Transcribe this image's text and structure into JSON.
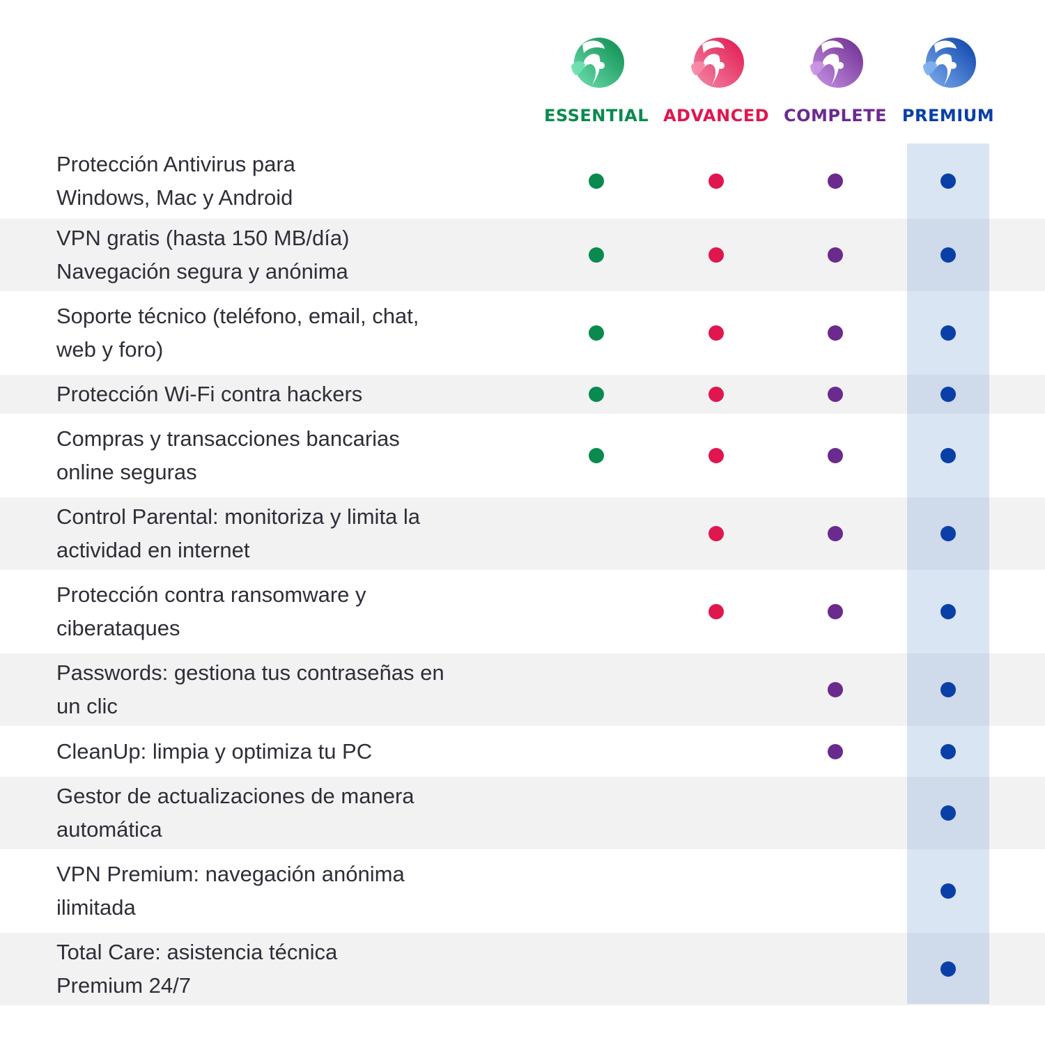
{
  "plans": [
    {
      "id": "essential",
      "name": "ESSENTIAL",
      "color": "#0a8a4e",
      "light": "#6fe0b0",
      "icon": "essential-logo-icon"
    },
    {
      "id": "advanced",
      "name": "ADVANCED",
      "color": "#e0164f",
      "light": "#f58aa8",
      "icon": "advanced-logo-icon"
    },
    {
      "id": "complete",
      "name": "COMPLETE",
      "color": "#6b2a8e",
      "light": "#c994e6",
      "icon": "complete-logo-icon"
    },
    {
      "id": "premium",
      "name": "PREMIUM",
      "color": "#0a3fa8",
      "light": "#7fb0ee",
      "icon": "premium-logo-icon"
    }
  ],
  "features": [
    {
      "label": "Protección Antivirus para\nWindows, Mac y Android",
      "included": [
        true,
        true,
        true,
        true
      ]
    },
    {
      "label": "VPN gratis (hasta 150 MB/día)\nNavegación segura y anónima",
      "included": [
        true,
        true,
        true,
        true
      ]
    },
    {
      "label": "Soporte técnico (teléfono, email, chat,\nweb y foro)",
      "included": [
        true,
        true,
        true,
        true
      ]
    },
    {
      "label": "Protección Wi-Fi contra hackers",
      "included": [
        true,
        true,
        true,
        true
      ]
    },
    {
      "label": "Compras y transacciones bancarias\nonline seguras",
      "included": [
        true,
        true,
        true,
        true
      ]
    },
    {
      "label": "Control Parental: monitoriza y limita la\nactividad en internet",
      "included": [
        false,
        true,
        true,
        true
      ]
    },
    {
      "label": "Protección contra ransomware y\nciberataques",
      "included": [
        false,
        true,
        true,
        true
      ]
    },
    {
      "label": "Passwords: gestiona tus contraseñas en\nun clic",
      "included": [
        false,
        false,
        true,
        true
      ]
    },
    {
      "label": "CleanUp: limpia y optimiza tu PC",
      "included": [
        false,
        false,
        true,
        true
      ]
    },
    {
      "label": "Gestor de actualizaciones de manera\nautomática",
      "included": [
        false,
        false,
        false,
        true
      ]
    },
    {
      "label": "VPN Premium: navegación anónima\nilimitada",
      "included": [
        false,
        false,
        false,
        true
      ]
    },
    {
      "label": "Total Care: asistencia técnica\nPremium 24/7",
      "included": [
        false,
        false,
        false,
        true
      ]
    }
  ]
}
